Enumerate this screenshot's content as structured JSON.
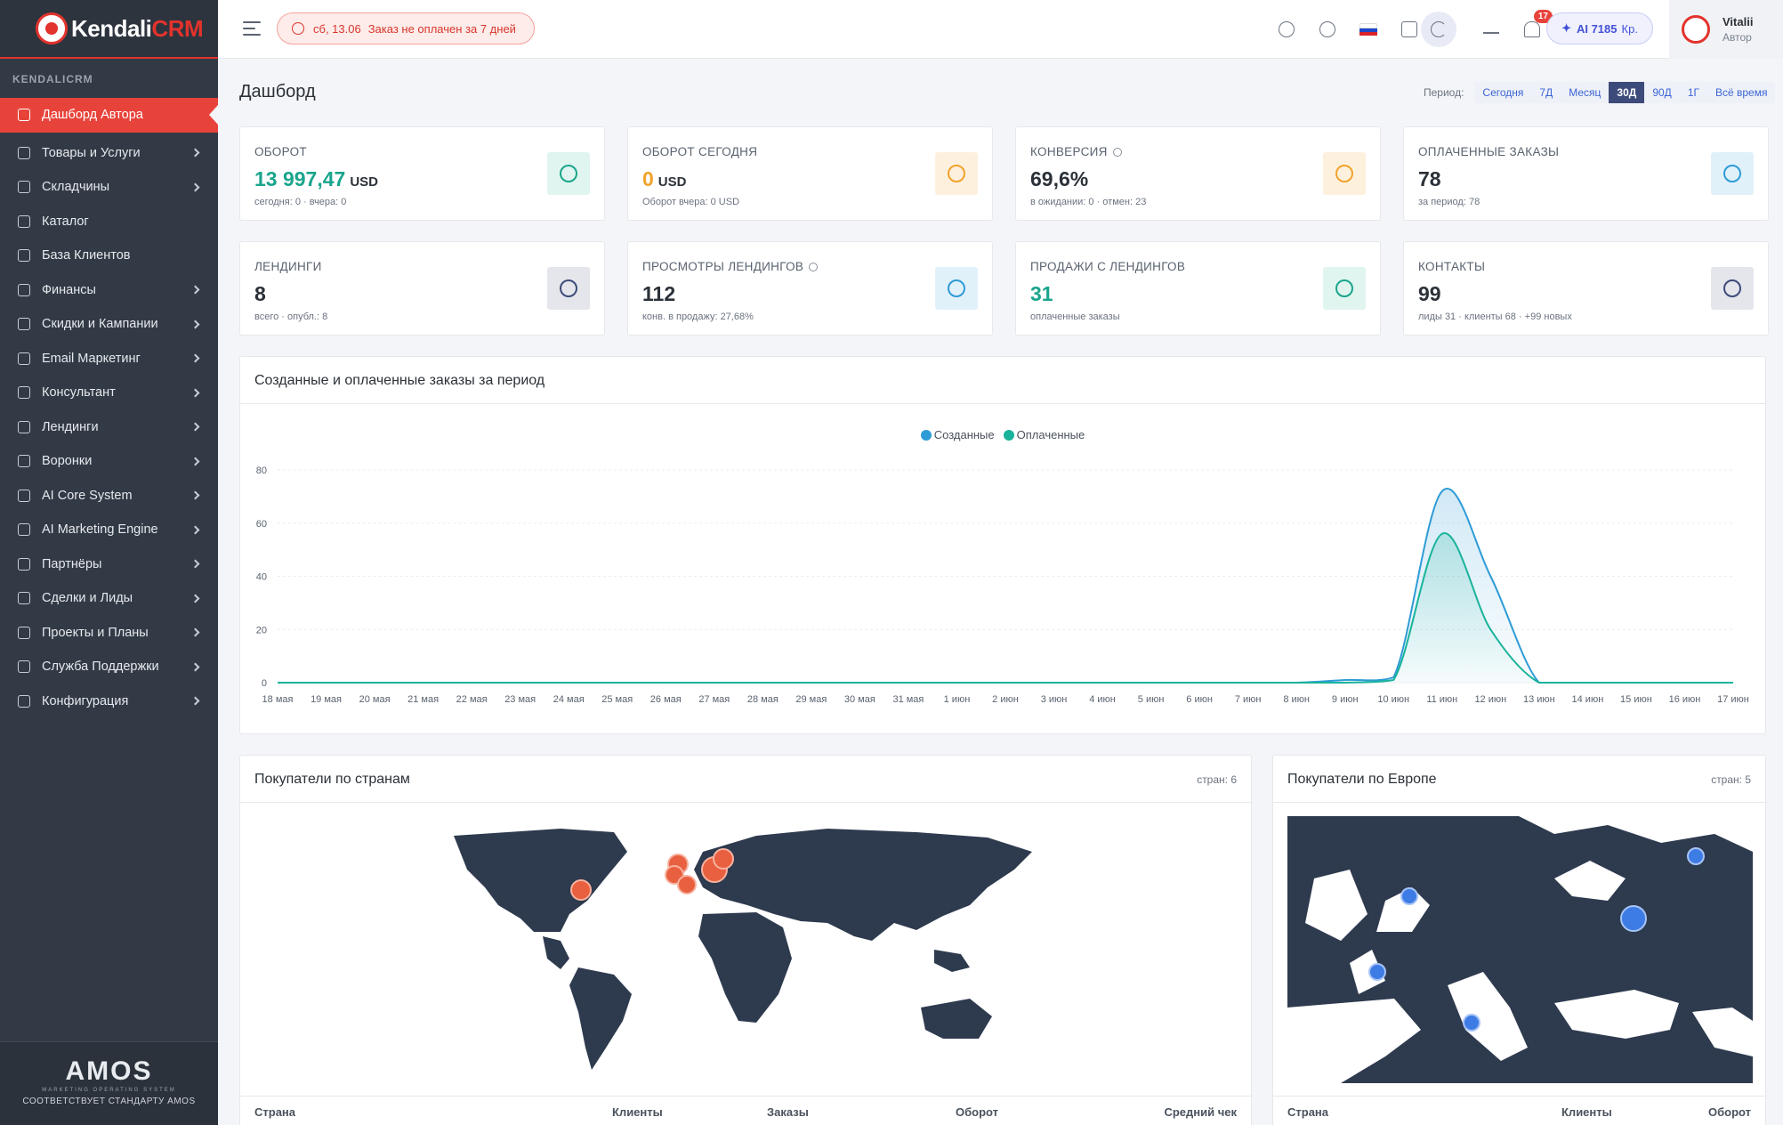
{
  "brand": {
    "name_a": "Kendali",
    "name_b": "CRM"
  },
  "sidebar": {
    "section": "KENDALICRM",
    "items": [
      {
        "label": "Дашборд Автора",
        "icon": "home-icon",
        "active": true,
        "chevron": false
      },
      {
        "label": "Товары и Услуги",
        "icon": "box-icon",
        "chevron": true
      },
      {
        "label": "Складчины",
        "icon": "group-buy-icon",
        "chevron": true
      },
      {
        "label": "Каталог",
        "icon": "store-icon",
        "chevron": false
      },
      {
        "label": "База Клиентов",
        "icon": "user-icon",
        "chevron": false
      },
      {
        "label": "Финансы",
        "icon": "finance-icon",
        "chevron": true
      },
      {
        "label": "Скидки и Кампании",
        "icon": "discount-icon",
        "chevron": true
      },
      {
        "label": "Email Маркетинг",
        "icon": "mail-icon",
        "chevron": true
      },
      {
        "label": "Консультант",
        "icon": "headset-icon",
        "chevron": true
      },
      {
        "label": "Лендинги",
        "icon": "page-icon",
        "chevron": true
      },
      {
        "label": "Воронки",
        "icon": "funnel-icon",
        "chevron": true
      },
      {
        "label": "AI Core System",
        "icon": "sparkle-icon",
        "chevron": true
      },
      {
        "label": "AI Marketing Engine",
        "icon": "bell-icon",
        "chevron": true
      },
      {
        "label": "Партнёры",
        "icon": "partners-icon",
        "chevron": true
      },
      {
        "label": "Сделки и Лиды",
        "icon": "deals-icon",
        "chevron": true
      },
      {
        "label": "Проекты и Планы",
        "icon": "projects-icon",
        "chevron": true
      },
      {
        "label": "Служба Поддержки",
        "icon": "support-icon",
        "chevron": true
      },
      {
        "label": "Конфигурация",
        "icon": "gear-icon",
        "chevron": true
      }
    ],
    "footer": {
      "logo_a": "AMOS",
      "logo_sub": "MARKETING OPERATING SYSTEM",
      "standard": "СООТВЕТСТВУЕТ СТАНДАРТУ AMOS"
    }
  },
  "header": {
    "alert_date": "сб, 13.06",
    "alert_text": "Заказ не оплачен за 7 дней",
    "notifications": "17",
    "ai_label": "AI 7185",
    "ai_unit": "Кр.",
    "user_name": "Vitalii",
    "user_role": "Автор"
  },
  "page": {
    "title": "Дашборд",
    "period_label": "Период:",
    "periods": [
      "Сегодня",
      "7Д",
      "Месяц",
      "30Д",
      "90Д",
      "1Г",
      "Всё время"
    ],
    "active_period": "30Д"
  },
  "kpis": [
    {
      "title": "ОБОРОТ",
      "value": "13 997,47",
      "unit": "USD",
      "sub": "сегодня: 0 · вчера: 0",
      "color": "#1aa58d",
      "icon": "dollar-icon",
      "bg": "#e0f5ef",
      "ic": "#1aa58d"
    },
    {
      "title": "ОБОРОТ СЕГОДНЯ",
      "value": "0",
      "unit": "USD",
      "sub": "Оборот вчера: 0 USD",
      "color": "#f1a22c",
      "icon": "wallet-icon",
      "bg": "#fdf1de",
      "ic": "#f1a22c"
    },
    {
      "title": "КОНВЕРСИЯ",
      "value": "69,6%",
      "unit": "",
      "sub": "в ожидании: 0 · отмен: 23",
      "color": "#2b3138",
      "icon": "percent-icon",
      "bg": "#fdf1de",
      "ic": "#f1a22c",
      "info": true
    },
    {
      "title": "ОПЛАЧЕННЫЕ ЗАКАЗЫ",
      "value": "78",
      "unit": "",
      "sub": "за период: 78",
      "color": "#2b3138",
      "icon": "bag-icon",
      "bg": "#e1f1fa",
      "ic": "#2e9bd6"
    },
    {
      "title": "ЛЕНДИНГИ",
      "value": "8",
      "unit": "",
      "sub": "всего · опубл.: 8",
      "color": "#2b3138",
      "icon": "document-icon",
      "bg": "#e4e6ec",
      "ic": "#3d4b7a"
    },
    {
      "title": "ПРОСМОТРЫ ЛЕНДИНГОВ",
      "value": "112",
      "unit": "",
      "sub": "конв. в продажу: 27,68%",
      "color": "#2b3138",
      "icon": "eye-icon",
      "bg": "#e1f1fa",
      "ic": "#2e9bd6",
      "info": true
    },
    {
      "title": "ПРОДАЖИ С ЛЕНДИНГОВ",
      "value": "31",
      "unit": "",
      "sub": "оплаченные заказы",
      "color": "#1aa58d",
      "icon": "cart-icon",
      "bg": "#e0f5ef",
      "ic": "#1aa58d"
    },
    {
      "title": "КОНТАКТЫ",
      "value": "99",
      "unit": "",
      "sub": "лиды 31 · клиенты 68 · +99 новых",
      "color": "#2b3138",
      "icon": "people-icon",
      "bg": "#e4e6ec",
      "ic": "#3d4b7a"
    }
  ],
  "orders_panel": {
    "title": "Созданные и оплаченные заказы за период"
  },
  "chart_data": {
    "type": "area",
    "title": "",
    "ylim": [
      0,
      80
    ],
    "yticks": [
      0,
      20,
      40,
      60,
      80
    ],
    "legend_position": "top-center",
    "categories": [
      "18 мая",
      "19 мая",
      "20 мая",
      "21 мая",
      "22 мая",
      "23 мая",
      "24 мая",
      "25 мая",
      "26 мая",
      "27 мая",
      "28 мая",
      "29 мая",
      "30 мая",
      "31 мая",
      "1 июн",
      "2 июн",
      "3 июн",
      "4 июн",
      "5 июн",
      "6 июн",
      "7 июн",
      "8 июн",
      "9 июн",
      "10 июн",
      "11 июн",
      "12 июн",
      "13 июн",
      "14 июн",
      "15 июн",
      "16 июн",
      "17 июн"
    ],
    "series": [
      {
        "name": "Созданные",
        "color": "#2e9bd6",
        "values": [
          0,
          0,
          0,
          0,
          0,
          0,
          0,
          0,
          0,
          0,
          0,
          0,
          0,
          0,
          0,
          0,
          0,
          0,
          0,
          0,
          0,
          0,
          1,
          2,
          72,
          40,
          0,
          0,
          0,
          0,
          0
        ]
      },
      {
        "name": "Оплаченные",
        "color": "#19b39b",
        "values": [
          0,
          0,
          0,
          0,
          0,
          0,
          0,
          0,
          0,
          0,
          0,
          0,
          0,
          0,
          0,
          0,
          0,
          0,
          0,
          0,
          0,
          0,
          0,
          1,
          56,
          20,
          0,
          0,
          0,
          0,
          0
        ]
      }
    ]
  },
  "countries_panel": {
    "title": "Покупатели по странам",
    "meta": "стран: 6",
    "cols": [
      "Страна",
      "Клиенты",
      "Заказы",
      "Оборот",
      "Средний чек"
    ]
  },
  "europe_panel": {
    "title": "Покупатели по Европе",
    "meta": "стран: 5",
    "cols": [
      "Страна",
      "Клиенты",
      "Оборот"
    ]
  }
}
